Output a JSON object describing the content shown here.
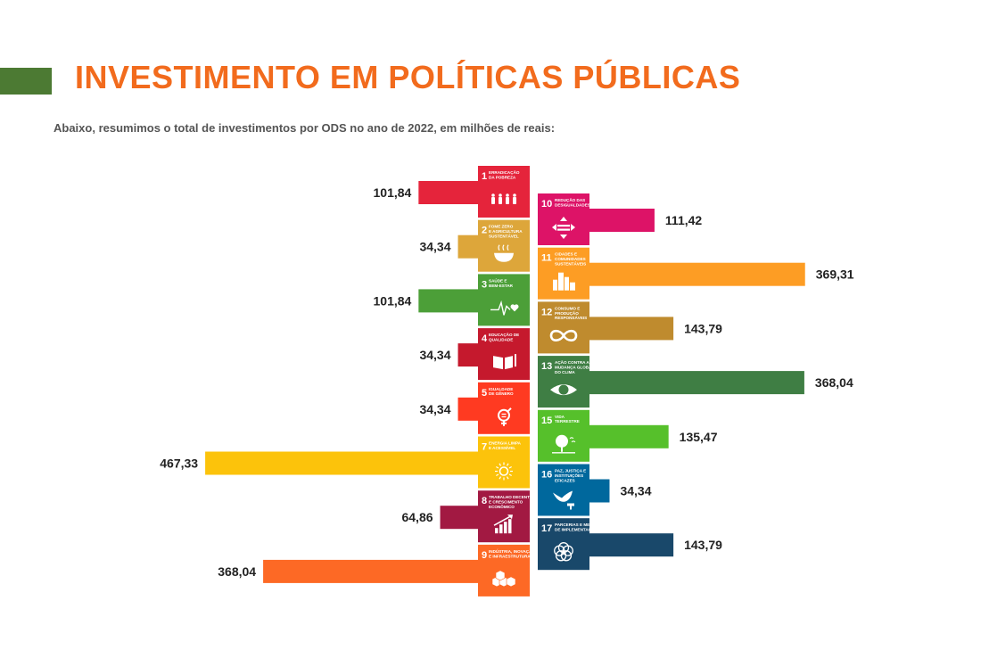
{
  "header": {
    "title": "INVESTIMENTO EM POLÍTICAS PÚBLICAS",
    "subtitle": "Abaixo, resumimos o total de investimentos por ODS no ano de 2022, em milhões de reais:"
  },
  "colors": {
    "accent_block": "#4c7a33",
    "title": "#f26b1d"
  },
  "chart_data": {
    "type": "bar",
    "orientation": "horizontal-diverging",
    "title": "",
    "value_unit": "",
    "series": [
      {
        "name": "",
        "direction": "left",
        "categories": [
          {
            "number": "1",
            "label_lines": [
              "ERRADICAÇÃO",
              "DA POBREZA"
            ],
            "value": 101.84,
            "value_label": "101,84",
            "color": "#e5243b",
            "icon": "people-icon"
          },
          {
            "number": "2",
            "label_lines": [
              "FOME ZERO",
              "E AGRICULTURA",
              "SUSTENTÁVEL"
            ],
            "value": 34.34,
            "value_label": "34,34",
            "color": "#dda63a",
            "icon": "bowl-icon"
          },
          {
            "number": "3",
            "label_lines": [
              "SAÚDE E",
              "BEM-ESTAR"
            ],
            "value": 101.84,
            "value_label": "101,84",
            "color": "#4c9f38",
            "icon": "heartbeat-icon"
          },
          {
            "number": "4",
            "label_lines": [
              "EDUCAÇÃO DE",
              "QUALIDADE"
            ],
            "value": 34.34,
            "value_label": "34,34",
            "color": "#c5192d",
            "icon": "book-icon"
          },
          {
            "number": "5",
            "label_lines": [
              "IGUALDADE",
              "DE GÊNERO"
            ],
            "value": 34.34,
            "value_label": "34,34",
            "color": "#ff3a21",
            "icon": "gender-icon"
          },
          {
            "number": "7",
            "label_lines": [
              "ENERGIA LIMPA",
              "E ACESSÍVEL"
            ],
            "value": 467.33,
            "value_label": "467,33",
            "color": "#fcc30b",
            "icon": "sun-power-icon"
          },
          {
            "number": "8",
            "label_lines": [
              "TRABALHO DECENTE",
              "E CRESCIMENTO",
              "ECONÔMICO"
            ],
            "value": 64.86,
            "value_label": "64,86",
            "color": "#a21942",
            "icon": "growth-chart-icon"
          },
          {
            "number": "9",
            "label_lines": [
              "INDÚSTRIA, INOVAÇÃO",
              "E INFRAESTRUTURA"
            ],
            "value": 368.04,
            "value_label": "368,04",
            "color": "#fd6925",
            "icon": "cubes-icon"
          }
        ]
      },
      {
        "name": "",
        "direction": "right",
        "categories": [
          {
            "number": "10",
            "label_lines": [
              "REDUÇÃO DAS",
              "DESIGUALDADES"
            ],
            "value": 111.42,
            "value_label": "111,42",
            "color": "#dd1367",
            "icon": "equality-icon"
          },
          {
            "number": "11",
            "label_lines": [
              "CIDADES E",
              "COMUNIDADES",
              "SUSTENTÁVEIS"
            ],
            "value": 369.31,
            "value_label": "369,31",
            "color": "#fd9d24",
            "icon": "city-icon"
          },
          {
            "number": "12",
            "label_lines": [
              "CONSUMO E",
              "PRODUÇÃO",
              "RESPONSÁVEIS"
            ],
            "value": 143.79,
            "value_label": "143,79",
            "color": "#bf8b2e",
            "icon": "infinity-icon"
          },
          {
            "number": "13",
            "label_lines": [
              "AÇÃO CONTRA A",
              "MUDANÇA GLOBAL",
              "DO CLIMA"
            ],
            "value": 368.04,
            "value_label": "368,04",
            "color": "#3f7e44",
            "icon": "eye-globe-icon"
          },
          {
            "number": "15",
            "label_lines": [
              "VIDA",
              "TERRESTRE"
            ],
            "value": 135.47,
            "value_label": "135,47",
            "color": "#56c02b",
            "icon": "tree-icon"
          },
          {
            "number": "16",
            "label_lines": [
              "PAZ, JUSTIÇA E",
              "INSTITUIÇÕES",
              "EFICAZES"
            ],
            "value": 34.34,
            "value_label": "34,34",
            "color": "#00689d",
            "icon": "dove-gavel-icon"
          },
          {
            "number": "17",
            "label_lines": [
              "PARCERIAS E MEIOS",
              "DE IMPLEMENTAÇÃO"
            ],
            "value": 143.79,
            "value_label": "143,79",
            "color": "#19486a",
            "icon": "rings-icon"
          }
        ]
      }
    ]
  }
}
